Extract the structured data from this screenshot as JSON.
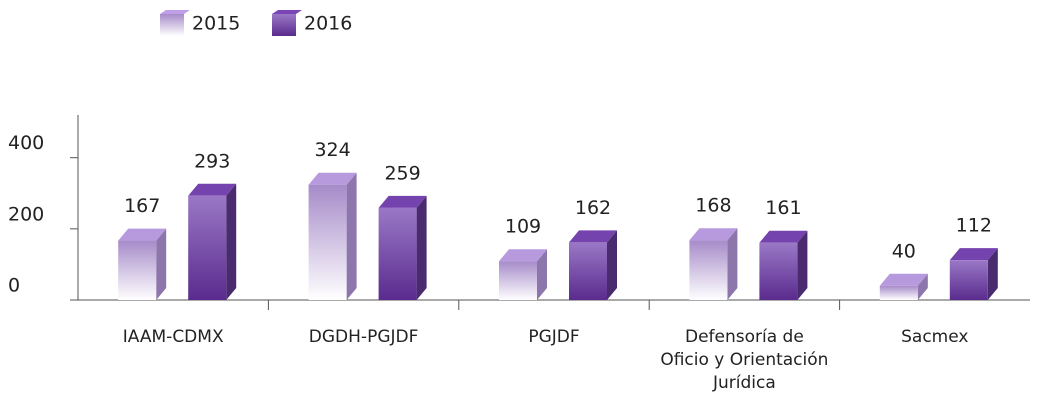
{
  "chart_data": {
    "type": "bar",
    "categories": [
      "IAAM-CDMX",
      "DGDH-PGJDF",
      "PGJDF",
      "Defensoría de Oficio y Orientación Jurídica",
      "Sacmex"
    ],
    "series": [
      {
        "name": "2015",
        "color": "#a68bc9",
        "values": [
          167,
          324,
          109,
          168,
          40
        ]
      },
      {
        "name": "2016",
        "color": "#6a3d9e",
        "values": [
          293,
          259,
          162,
          161,
          112
        ]
      }
    ],
    "ylim": [
      0,
      520
    ],
    "yticks": [
      0,
      200,
      400
    ],
    "legend": "top"
  }
}
